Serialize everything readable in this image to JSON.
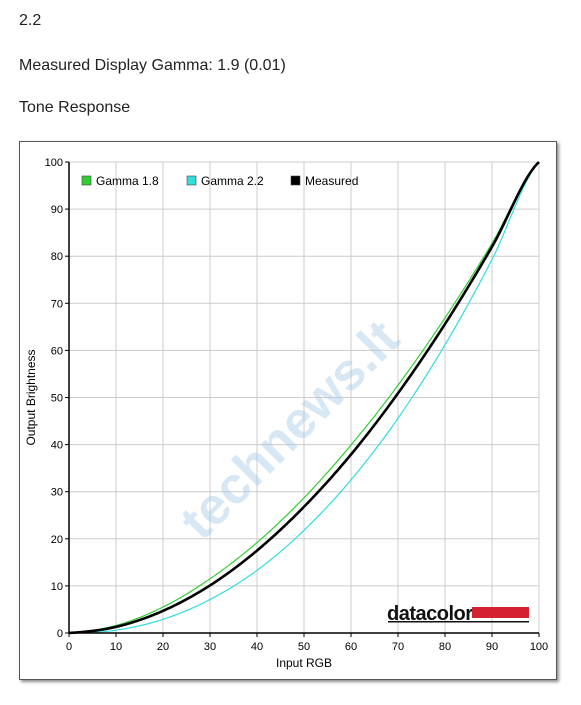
{
  "page": {
    "line1": "2.2",
    "line2": "Measured Display Gamma: 1.9 (0.01)",
    "line3": "Tone Response"
  },
  "watermark": {
    "text": "technews.lt"
  },
  "brand": {
    "text": "datacolor",
    "bar_color": "#d42030"
  },
  "chart_data": {
    "type": "line",
    "title": "",
    "xlabel": "Input RGB",
    "ylabel": "Output Brightness",
    "xlim": [
      0,
      100
    ],
    "ylim": [
      0,
      100
    ],
    "xticks": [
      0,
      10,
      20,
      30,
      40,
      50,
      60,
      70,
      80,
      90,
      100
    ],
    "yticks": [
      0,
      10,
      20,
      30,
      40,
      50,
      60,
      70,
      80,
      90,
      100
    ],
    "grid": true,
    "legend_position": "top-left",
    "x": [
      0,
      10,
      20,
      30,
      40,
      50,
      60,
      70,
      80,
      90,
      100
    ],
    "series": [
      {
        "name": "Gamma 1.8",
        "color": "#33cc33",
        "width": 1.2,
        "values": [
          0,
          1.6,
          5.5,
          11.5,
          19.2,
          28.7,
          39.9,
          52.6,
          66.9,
          82.7,
          100
        ]
      },
      {
        "name": "Gamma 2.2",
        "color": "#33dddd",
        "width": 1.2,
        "values": [
          0,
          0.6,
          2.9,
          7.1,
          13.3,
          21.8,
          32.5,
          45.6,
          61.2,
          79.3,
          100
        ]
      },
      {
        "name": "Measured",
        "color": "#000000",
        "width": 2.6,
        "values": [
          0,
          1.3,
          4.7,
          10.1,
          17.5,
          26.8,
          37.9,
          50.9,
          65.6,
          82.0,
          100
        ]
      }
    ]
  }
}
